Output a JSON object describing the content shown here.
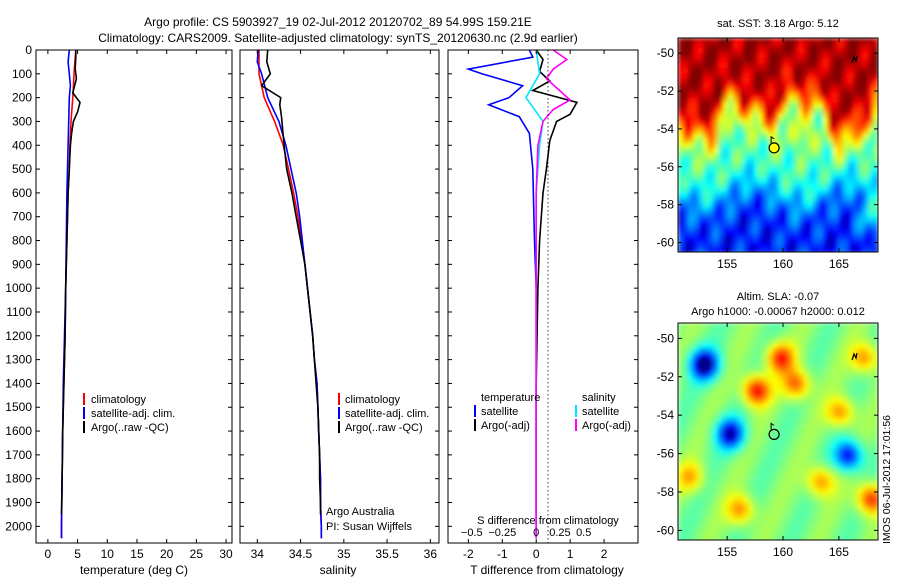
{
  "title": {
    "line1": "Argo profile: CS 5903927_19 02-Jul-2012 20120702_89 54.99S 159.21E",
    "line2": "Climatology: CARS2009. Satellite-adjusted climatology: synTS_20120630.nc (2.9d earlier)"
  },
  "colors": {
    "climatology": "#ff0000",
    "satellite": "#0000ff",
    "argo": "#000000",
    "satellite_sal": "#00e5ff",
    "argo_sal": "#ff00ff"
  },
  "watermark": "IMOS 06-Jul-2012 17:01:56",
  "chart_data": [
    {
      "type": "line",
      "panel": "temperature",
      "xlabel": "temperature (deg C)",
      "ylabel": "",
      "xlim": [
        -2,
        31
      ],
      "ylim": [
        2070,
        0
      ],
      "xticks": [
        0,
        5,
        10,
        15,
        20,
        25,
        30
      ],
      "yticks": [
        0,
        100,
        200,
        300,
        400,
        500,
        600,
        700,
        800,
        900,
        1000,
        1100,
        1200,
        1300,
        1400,
        1500,
        1600,
        1700,
        1800,
        1900,
        2000
      ],
      "legend": [
        "climatology",
        "satellite-adj. clim.",
        "Argo(..raw -QC)"
      ],
      "series": [
        {
          "name": "climatology",
          "color": "#ff0000",
          "points": [
            [
              4.7,
              0
            ],
            [
              4.4,
              100
            ],
            [
              4.2,
              200
            ],
            [
              3.9,
              300
            ],
            [
              3.7,
              400
            ],
            [
              3.6,
              500
            ],
            [
              3.4,
              600
            ],
            [
              3.3,
              700
            ],
            [
              3.2,
              800
            ],
            [
              3.1,
              900
            ],
            [
              3.0,
              1000
            ],
            [
              2.9,
              1200
            ],
            [
              2.7,
              1400
            ],
            [
              2.5,
              1600
            ],
            [
              2.4,
              1800
            ],
            [
              2.3,
              2000
            ],
            [
              2.3,
              2050
            ]
          ]
        },
        {
          "name": "satellite-adj. clim.",
          "color": "#0000ff",
          "points": [
            [
              3.6,
              0
            ],
            [
              3.4,
              50
            ],
            [
              3.6,
              100
            ],
            [
              3.8,
              150
            ],
            [
              3.6,
              200
            ],
            [
              3.5,
              300
            ],
            [
              3.4,
              400
            ],
            [
              3.3,
              500
            ],
            [
              3.2,
              600
            ],
            [
              3.1,
              800
            ],
            [
              3.0,
              1000
            ],
            [
              2.8,
              1200
            ],
            [
              2.6,
              1400
            ],
            [
              2.5,
              1600
            ],
            [
              2.4,
              1800
            ],
            [
              2.3,
              2000
            ],
            [
              2.3,
              2050
            ]
          ]
        },
        {
          "name": "Argo(..raw -QC)",
          "color": "#000000",
          "points": [
            [
              4.7,
              0
            ],
            [
              4.7,
              30
            ],
            [
              4.6,
              80
            ],
            [
              4.8,
              120
            ],
            [
              4.2,
              180
            ],
            [
              5.4,
              220
            ],
            [
              5.0,
              260
            ],
            [
              4.3,
              300
            ],
            [
              4.0,
              350
            ],
            [
              3.8,
              400
            ],
            [
              3.6,
              500
            ],
            [
              3.4,
              600
            ],
            [
              3.3,
              700
            ],
            [
              3.2,
              800
            ],
            [
              3.0,
              1000
            ],
            [
              2.9,
              1200
            ],
            [
              2.7,
              1400
            ],
            [
              2.5,
              1600
            ],
            [
              2.4,
              1800
            ],
            [
              2.3,
              1950
            ]
          ]
        }
      ]
    },
    {
      "type": "line",
      "panel": "salinity",
      "xlabel": "salinity",
      "ylabel": "",
      "xlim": [
        33.8,
        36.1
      ],
      "ylim": [
        2070,
        0
      ],
      "xticks": [
        34,
        34.5,
        35,
        35.5,
        36
      ],
      "yticks": [],
      "legend": [
        "climatology",
        "satellite-adj. clim.",
        "Argo(..raw -QC)"
      ],
      "annotations": [
        "Argo Australia",
        "PI: Susan Wijffels"
      ],
      "series": [
        {
          "name": "climatology",
          "color": "#ff0000",
          "points": [
            [
              34.02,
              0
            ],
            [
              34.02,
              100
            ],
            [
              34.08,
              200
            ],
            [
              34.2,
              300
            ],
            [
              34.3,
              400
            ],
            [
              34.36,
              500
            ],
            [
              34.42,
              600
            ],
            [
              34.47,
              700
            ],
            [
              34.51,
              800
            ],
            [
              34.55,
              900
            ],
            [
              34.58,
              1000
            ],
            [
              34.61,
              1100
            ],
            [
              34.64,
              1200
            ],
            [
              34.66,
              1300
            ],
            [
              34.69,
              1400
            ],
            [
              34.7,
              1500
            ],
            [
              34.71,
              1600
            ],
            [
              34.72,
              1700
            ],
            [
              34.73,
              1800
            ],
            [
              34.73,
              1900
            ],
            [
              34.74,
              2000
            ],
            [
              34.74,
              2050
            ]
          ]
        },
        {
          "name": "satellite-adj. clim.",
          "color": "#0000ff",
          "points": [
            [
              34.01,
              0
            ],
            [
              34.0,
              50
            ],
            [
              34.05,
              100
            ],
            [
              34.12,
              200
            ],
            [
              34.25,
              300
            ],
            [
              34.33,
              400
            ],
            [
              34.39,
              500
            ],
            [
              34.45,
              600
            ],
            [
              34.49,
              700
            ],
            [
              34.52,
              800
            ],
            [
              34.55,
              900
            ],
            [
              34.58,
              1000
            ],
            [
              34.61,
              1100
            ],
            [
              34.64,
              1200
            ],
            [
              34.66,
              1300
            ],
            [
              34.69,
              1400
            ],
            [
              34.7,
              1500
            ],
            [
              34.71,
              1600
            ],
            [
              34.72,
              1700
            ],
            [
              34.73,
              1800
            ],
            [
              34.73,
              1900
            ],
            [
              34.74,
              2000
            ],
            [
              34.74,
              2050
            ]
          ]
        },
        {
          "name": "Argo(..raw -QC)",
          "color": "#000000",
          "points": [
            [
              34.12,
              0
            ],
            [
              34.11,
              50
            ],
            [
              34.15,
              100
            ],
            [
              34.05,
              150
            ],
            [
              34.27,
              200
            ],
            [
              34.26,
              230
            ],
            [
              34.28,
              280
            ],
            [
              34.31,
              400
            ],
            [
              34.34,
              500
            ],
            [
              34.4,
              600
            ],
            [
              34.45,
              700
            ],
            [
              34.5,
              800
            ],
            [
              34.55,
              900
            ],
            [
              34.58,
              1000
            ],
            [
              34.61,
              1100
            ],
            [
              34.64,
              1200
            ],
            [
              34.66,
              1300
            ],
            [
              34.68,
              1400
            ],
            [
              34.7,
              1500
            ],
            [
              34.71,
              1600
            ],
            [
              34.72,
              1700
            ],
            [
              34.72,
              1800
            ],
            [
              34.73,
              1900
            ],
            [
              34.73,
              1950
            ]
          ]
        }
      ]
    },
    {
      "type": "line",
      "panel": "difference",
      "xlabel": "T difference from climatology",
      "xlabel_top": "S difference from climatology",
      "xlim": [
        -2.6,
        3.0
      ],
      "ylim": [
        2070,
        0
      ],
      "xticks": [
        -2,
        -1,
        0,
        1,
        2
      ],
      "xticks_top": [
        {
          "pos": -1.9,
          "label": "−0.5"
        },
        {
          "pos": -1.0,
          "label": "−0.25"
        },
        {
          "pos": 0,
          "label": "0"
        },
        {
          "pos": 0.7,
          "label": "0.25"
        },
        {
          "pos": 1.4,
          "label": "0.5"
        }
      ],
      "legend_temperature": {
        "heading": "temperature",
        "items": [
          "satellite",
          "Argo(-adj)"
        ]
      },
      "legend_salinity": {
        "heading": "salinity",
        "items": [
          "satellite",
          "Argo(-adj)"
        ]
      },
      "series": [
        {
          "name": "satellite",
          "group": "temperature",
          "color": "#0000ff",
          "points": [
            [
              -0.2,
              0
            ],
            [
              -0.1,
              30
            ],
            [
              -2.0,
              80
            ],
            [
              -1.6,
              100
            ],
            [
              -0.4,
              150
            ],
            [
              -0.8,
              200
            ],
            [
              -1.4,
              230
            ],
            [
              -0.5,
              280
            ],
            [
              -0.2,
              350
            ],
            [
              -0.1,
              500
            ],
            [
              -0.05,
              800
            ],
            [
              0,
              1000
            ],
            [
              0,
              2050
            ]
          ]
        },
        {
          "name": "Argo(-adj)",
          "group": "temperature",
          "color": "#000000",
          "points": [
            [
              0,
              0
            ],
            [
              0.2,
              40
            ],
            [
              0.1,
              90
            ],
            [
              0.4,
              130
            ],
            [
              -0.1,
              170
            ],
            [
              1.2,
              220
            ],
            [
              1.0,
              270
            ],
            [
              0.6,
              300
            ],
            [
              0.4,
              380
            ],
            [
              0.3,
              500
            ],
            [
              0.2,
              600
            ],
            [
              0.1,
              800
            ],
            [
              0.05,
              1000
            ],
            [
              0,
              1400
            ],
            [
              0,
              1950
            ]
          ]
        },
        {
          "name": "satellite",
          "group": "salinity",
          "color": "#00e5ff",
          "points": [
            [
              0,
              0
            ],
            [
              0.1,
              100
            ],
            [
              -0.3,
              200
            ],
            [
              0.2,
              300
            ],
            [
              0.1,
              400
            ],
            [
              0,
              600
            ],
            [
              0,
              2050
            ]
          ]
        },
        {
          "name": "Argo(-adj)",
          "group": "salinity",
          "color": "#ff00ff",
          "points": [
            [
              0.5,
              0
            ],
            [
              0.9,
              40
            ],
            [
              0.5,
              80
            ],
            [
              0.3,
              120
            ],
            [
              1.0,
              210
            ],
            [
              0.5,
              250
            ],
            [
              0.2,
              300
            ],
            [
              0.05,
              400
            ],
            [
              0,
              600
            ],
            [
              0,
              2050
            ]
          ]
        }
      ]
    },
    {
      "type": "heatmap",
      "panel": "map-sst",
      "title": "sat. SST: 3.18 Argo: 5.12",
      "xlim": [
        150.6,
        168.5
      ],
      "ylim": [
        -60.5,
        -49.2
      ],
      "xticks": [
        155,
        160,
        165
      ],
      "yticks": [
        -50,
        -52,
        -54,
        -56,
        -58,
        -60
      ],
      "marker": {
        "lon": 159.2,
        "lat": -55.0,
        "fill": "#ffff00"
      }
    },
    {
      "type": "heatmap",
      "panel": "map-sla",
      "title_line1": "Altim. SLA: -0.07",
      "title_line2": "Argo h1000: -0.00067 h2000: 0.012",
      "xlim": [
        150.6,
        168.5
      ],
      "ylim": [
        -60.5,
        -49.2
      ],
      "xticks": [
        155,
        160,
        165
      ],
      "yticks": [
        -50,
        -52,
        -54,
        -56,
        -58,
        -60
      ],
      "marker": {
        "lon": 159.2,
        "lat": -55.0,
        "fill": "none"
      }
    }
  ]
}
